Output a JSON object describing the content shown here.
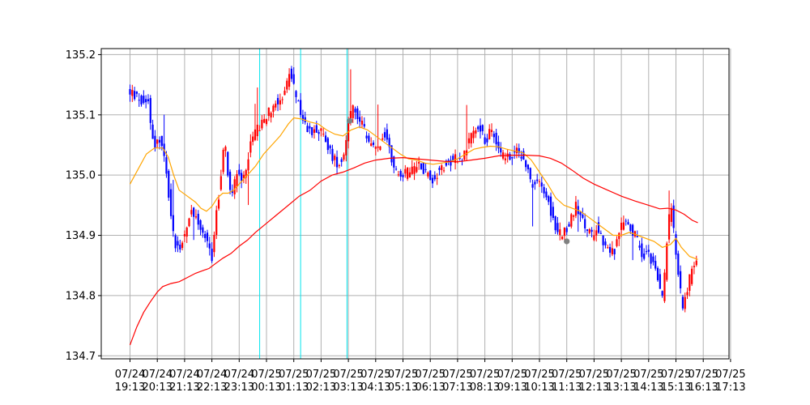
{
  "chart_data": {
    "type": "candlestick",
    "title": "",
    "xlabel": "",
    "ylabel": "",
    "ylim": [
      134.695,
      135.21
    ],
    "y_ticks": [
      134.7,
      134.8,
      134.9,
      135.0,
      135.1,
      135.2
    ],
    "y_tick_labels": [
      "134.7",
      "134.8",
      "134.9",
      "135.0",
      "135.1",
      "135.2"
    ],
    "x_ticks": [
      {
        "date": "07/24",
        "time": "19:13"
      },
      {
        "date": "07/24",
        "time": "20:13"
      },
      {
        "date": "07/24",
        "time": "21:13"
      },
      {
        "date": "07/24",
        "time": "22:13"
      },
      {
        "date": "07/24",
        "time": "23:13"
      },
      {
        "date": "07/25",
        "time": "00:13"
      },
      {
        "date": "07/25",
        "time": "01:13"
      },
      {
        "date": "07/25",
        "time": "02:13"
      },
      {
        "date": "07/25",
        "time": "03:13"
      },
      {
        "date": "07/25",
        "time": "04:13"
      },
      {
        "date": "07/25",
        "time": "05:13"
      },
      {
        "date": "07/25",
        "time": "06:13"
      },
      {
        "date": "07/25",
        "time": "07:13"
      },
      {
        "date": "07/25",
        "time": "08:13"
      },
      {
        "date": "07/25",
        "time": "09:13"
      },
      {
        "date": "07/25",
        "time": "10:13"
      },
      {
        "date": "07/25",
        "time": "11:13"
      },
      {
        "date": "07/25",
        "time": "12:13"
      },
      {
        "date": "07/25",
        "time": "13:13"
      },
      {
        "date": "07/25",
        "time": "14:13"
      },
      {
        "date": "07/25",
        "time": "15:13"
      },
      {
        "date": "07/25",
        "time": "16:13"
      },
      {
        "date": "07/25",
        "time": "17:13"
      }
    ],
    "xlim_hours": [
      -1.0,
      21.2
    ],
    "grid": true,
    "colors": {
      "up": "#ff0000",
      "down": "#0000ff",
      "ma_short": "#ffa500",
      "ma_long": "#ff0000",
      "vline": "#00e5ee",
      "marker": "#808080",
      "grid": "#b0b0b0"
    },
    "vertical_lines_hours": [
      4.75,
      6.25,
      7.95
    ],
    "markers": [
      {
        "hour": 8.05,
        "value": 135.09
      },
      {
        "hour": 16.0,
        "value": 134.89
      }
    ],
    "price_path": [
      [
        0.0,
        135.14
      ],
      [
        0.3,
        135.13
      ],
      [
        0.6,
        135.12
      ],
      [
        0.75,
        135.13
      ],
      [
        0.85,
        135.08
      ],
      [
        1.0,
        135.05
      ],
      [
        1.15,
        135.06
      ],
      [
        1.3,
        135.04
      ],
      [
        1.5,
        134.97
      ],
      [
        1.7,
        134.89
      ],
      [
        1.9,
        134.88
      ],
      [
        2.1,
        134.9
      ],
      [
        2.3,
        134.94
      ],
      [
        2.5,
        134.93
      ],
      [
        2.7,
        134.91
      ],
      [
        2.9,
        134.89
      ],
      [
        3.0,
        134.88
      ],
      [
        3.1,
        134.86
      ],
      [
        3.25,
        134.94
      ],
      [
        3.4,
        134.99
      ],
      [
        3.55,
        135.06
      ],
      [
        3.65,
        135.01
      ],
      [
        3.8,
        134.97
      ],
      [
        4.0,
        135.0
      ],
      [
        4.2,
        134.99
      ],
      [
        4.4,
        135.03
      ],
      [
        4.6,
        135.07
      ],
      [
        4.85,
        135.08
      ],
      [
        5.1,
        135.1
      ],
      [
        5.4,
        135.12
      ],
      [
        5.6,
        135.13
      ],
      [
        5.8,
        135.14
      ],
      [
        5.9,
        135.17
      ],
      [
        6.0,
        135.16
      ],
      [
        6.1,
        135.14
      ],
      [
        6.3,
        135.11
      ],
      [
        6.5,
        135.08
      ],
      [
        6.7,
        135.07
      ],
      [
        6.9,
        135.08
      ],
      [
        7.1,
        135.07
      ],
      [
        7.3,
        135.05
      ],
      [
        7.5,
        135.03
      ],
      [
        7.7,
        135.02
      ],
      [
        7.9,
        135.03
      ],
      [
        8.1,
        135.1
      ],
      [
        8.3,
        135.11
      ],
      [
        8.5,
        135.09
      ],
      [
        8.7,
        135.07
      ],
      [
        8.9,
        135.05
      ],
      [
        9.1,
        135.04
      ],
      [
        9.4,
        135.07
      ],
      [
        9.6,
        135.04
      ],
      [
        9.8,
        135.01
      ],
      [
        10.1,
        135.0
      ],
      [
        10.4,
        135.01
      ],
      [
        10.7,
        135.02
      ],
      [
        11.0,
        135.0
      ],
      [
        11.2,
        134.99
      ],
      [
        11.4,
        135.01
      ],
      [
        11.7,
        135.02
      ],
      [
        12.0,
        135.03
      ],
      [
        12.3,
        135.03
      ],
      [
        12.6,
        135.07
      ],
      [
        12.9,
        135.08
      ],
      [
        13.1,
        135.05
      ],
      [
        13.3,
        135.08
      ],
      [
        13.5,
        135.06
      ],
      [
        13.7,
        135.03
      ],
      [
        14.0,
        135.03
      ],
      [
        14.3,
        135.04
      ],
      [
        14.6,
        135.02
      ],
      [
        14.8,
        134.98
      ],
      [
        15.0,
        134.99
      ],
      [
        15.2,
        134.98
      ],
      [
        15.4,
        134.96
      ],
      [
        15.6,
        134.92
      ],
      [
        15.8,
        134.9
      ],
      [
        16.0,
        134.91
      ],
      [
        16.2,
        134.92
      ],
      [
        16.4,
        134.95
      ],
      [
        16.6,
        134.93
      ],
      [
        16.8,
        134.91
      ],
      [
        17.0,
        134.9
      ],
      [
        17.2,
        134.92
      ],
      [
        17.4,
        134.89
      ],
      [
        17.6,
        134.88
      ],
      [
        17.8,
        134.87
      ],
      [
        18.0,
        134.9
      ],
      [
        18.2,
        134.93
      ],
      [
        18.4,
        134.91
      ],
      [
        18.6,
        134.9
      ],
      [
        18.8,
        134.87
      ],
      [
        19.0,
        134.87
      ],
      [
        19.2,
        134.86
      ],
      [
        19.4,
        134.83
      ],
      [
        19.6,
        134.79
      ],
      [
        19.8,
        134.92
      ],
      [
        19.9,
        134.95
      ],
      [
        20.05,
        134.88
      ],
      [
        20.2,
        134.82
      ],
      [
        20.35,
        134.78
      ],
      [
        20.5,
        134.81
      ],
      [
        20.65,
        134.84
      ],
      [
        20.8,
        134.86
      ]
    ],
    "series": [
      {
        "name": "",
        "color": "#ffa500",
        "points": [
          [
            0.0,
            134.985
          ],
          [
            0.3,
            135.01
          ],
          [
            0.6,
            135.035
          ],
          [
            0.9,
            135.045
          ],
          [
            1.2,
            135.045
          ],
          [
            1.4,
            135.03
          ],
          [
            1.6,
            135.0
          ],
          [
            1.8,
            134.975
          ],
          [
            2.1,
            134.965
          ],
          [
            2.4,
            134.955
          ],
          [
            2.6,
            134.945
          ],
          [
            2.8,
            134.94
          ],
          [
            3.0,
            134.948
          ],
          [
            3.2,
            134.962
          ],
          [
            3.4,
            134.97
          ],
          [
            3.6,
            134.97
          ],
          [
            3.8,
            134.975
          ],
          [
            4.0,
            134.985
          ],
          [
            4.3,
            135.0
          ],
          [
            4.6,
            135.015
          ],
          [
            4.9,
            135.035
          ],
          [
            5.2,
            135.05
          ],
          [
            5.5,
            135.065
          ],
          [
            5.8,
            135.085
          ],
          [
            6.0,
            135.095
          ],
          [
            6.3,
            135.093
          ],
          [
            6.6,
            135.088
          ],
          [
            6.9,
            135.085
          ],
          [
            7.2,
            135.075
          ],
          [
            7.5,
            135.068
          ],
          [
            7.8,
            135.065
          ],
          [
            8.1,
            135.075
          ],
          [
            8.4,
            135.08
          ],
          [
            8.7,
            135.075
          ],
          [
            9.0,
            135.065
          ],
          [
            9.3,
            135.055
          ],
          [
            9.6,
            135.045
          ],
          [
            9.9,
            135.035
          ],
          [
            10.2,
            135.027
          ],
          [
            10.5,
            135.025
          ],
          [
            10.8,
            135.02
          ],
          [
            11.1,
            135.018
          ],
          [
            11.4,
            135.02
          ],
          [
            11.7,
            135.022
          ],
          [
            12.0,
            135.027
          ],
          [
            12.3,
            135.035
          ],
          [
            12.6,
            135.043
          ],
          [
            12.9,
            135.046
          ],
          [
            13.2,
            135.048
          ],
          [
            13.5,
            135.047
          ],
          [
            13.8,
            135.043
          ],
          [
            14.1,
            135.04
          ],
          [
            14.4,
            135.037
          ],
          [
            14.7,
            135.025
          ],
          [
            15.0,
            135.005
          ],
          [
            15.3,
            134.985
          ],
          [
            15.6,
            134.962
          ],
          [
            15.9,
            134.95
          ],
          [
            16.2,
            134.945
          ],
          [
            16.5,
            134.94
          ],
          [
            16.8,
            134.93
          ],
          [
            17.1,
            134.92
          ],
          [
            17.4,
            134.91
          ],
          [
            17.7,
            134.9
          ],
          [
            18.0,
            134.9
          ],
          [
            18.3,
            134.905
          ],
          [
            18.6,
            134.9
          ],
          [
            18.9,
            134.895
          ],
          [
            19.2,
            134.89
          ],
          [
            19.5,
            134.88
          ],
          [
            19.8,
            134.885
          ],
          [
            20.0,
            134.895
          ],
          [
            20.2,
            134.88
          ],
          [
            20.5,
            134.865
          ],
          [
            20.8,
            134.86
          ]
        ]
      },
      {
        "name": "",
        "color": "#ff0000",
        "points": [
          [
            0.0,
            134.718
          ],
          [
            0.25,
            134.748
          ],
          [
            0.5,
            134.772
          ],
          [
            0.75,
            134.79
          ],
          [
            1.0,
            134.806
          ],
          [
            1.2,
            134.815
          ],
          [
            1.5,
            134.82
          ],
          [
            1.8,
            134.823
          ],
          [
            2.1,
            134.83
          ],
          [
            2.4,
            134.837
          ],
          [
            2.7,
            134.842
          ],
          [
            2.9,
            134.845
          ],
          [
            3.1,
            134.852
          ],
          [
            3.4,
            134.862
          ],
          [
            3.7,
            134.87
          ],
          [
            4.0,
            134.882
          ],
          [
            4.3,
            134.892
          ],
          [
            4.6,
            134.905
          ],
          [
            5.0,
            134.92
          ],
          [
            5.4,
            134.935
          ],
          [
            5.8,
            134.95
          ],
          [
            6.2,
            134.965
          ],
          [
            6.6,
            134.975
          ],
          [
            7.0,
            134.99
          ],
          [
            7.4,
            135.0
          ],
          [
            7.8,
            135.005
          ],
          [
            8.2,
            135.012
          ],
          [
            8.6,
            135.02
          ],
          [
            9.0,
            135.025
          ],
          [
            9.5,
            135.028
          ],
          [
            10.0,
            135.029
          ],
          [
            10.5,
            135.027
          ],
          [
            11.0,
            135.025
          ],
          [
            11.5,
            135.023
          ],
          [
            12.0,
            135.022
          ],
          [
            12.5,
            135.025
          ],
          [
            13.0,
            135.028
          ],
          [
            13.5,
            135.032
          ],
          [
            14.0,
            135.033
          ],
          [
            14.5,
            135.033
          ],
          [
            15.0,
            135.032
          ],
          [
            15.4,
            135.028
          ],
          [
            15.8,
            135.02
          ],
          [
            16.2,
            135.008
          ],
          [
            16.6,
            134.995
          ],
          [
            17.0,
            134.985
          ],
          [
            17.5,
            134.975
          ],
          [
            18.0,
            134.965
          ],
          [
            18.5,
            134.957
          ],
          [
            19.0,
            134.95
          ],
          [
            19.4,
            134.944
          ],
          [
            19.7,
            134.945
          ],
          [
            20.0,
            134.942
          ],
          [
            20.3,
            134.935
          ],
          [
            20.6,
            134.925
          ],
          [
            20.8,
            134.921
          ]
        ]
      }
    ]
  }
}
